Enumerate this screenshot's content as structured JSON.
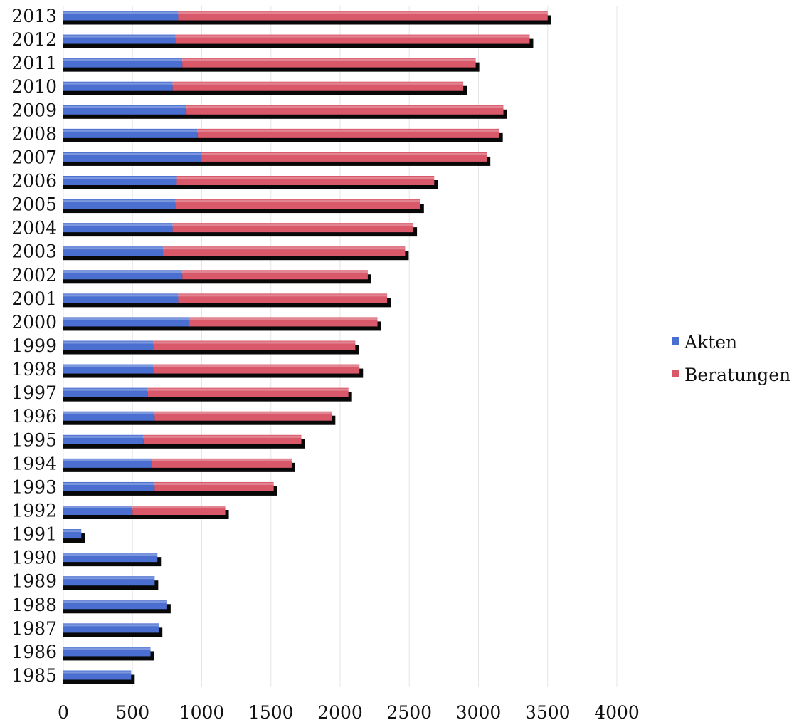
{
  "chart_data": {
    "type": "bar",
    "orientation": "horizontal",
    "stacked": true,
    "categories": [
      "1985",
      "1986",
      "1987",
      "1988",
      "1989",
      "1990",
      "1991",
      "1992",
      "1993",
      "1994",
      "1995",
      "1996",
      "1997",
      "1998",
      "1999",
      "2000",
      "2001",
      "2002",
      "2003",
      "2004",
      "2005",
      "2006",
      "2007",
      "2008",
      "2009",
      "2010",
      "2011",
      "2012",
      "2013"
    ],
    "series": [
      {
        "name": "Akten",
        "color": "#4a6fd0",
        "values": [
          490,
          630,
          690,
          750,
          660,
          680,
          130,
          500,
          660,
          640,
          580,
          660,
          610,
          650,
          650,
          910,
          830,
          860,
          720,
          790,
          810,
          820,
          1000,
          970,
          890,
          790,
          860,
          810,
          830
        ]
      },
      {
        "name": "Beratungen",
        "color": "#d9586a",
        "values": [
          0,
          0,
          0,
          0,
          0,
          0,
          0,
          670,
          860,
          1010,
          1140,
          1280,
          1450,
          1490,
          1460,
          1360,
          1510,
          1340,
          1750,
          1740,
          1770,
          1860,
          2060,
          2180,
          2290,
          2100,
          2120,
          2560,
          2670
        ]
      }
    ],
    "xlim": [
      0,
      4000
    ],
    "xticks": [
      "0",
      "500",
      "1000",
      "1500",
      "2000",
      "2500",
      "3000",
      "3500",
      "4000"
    ],
    "grid": true,
    "legend_position": "right"
  }
}
